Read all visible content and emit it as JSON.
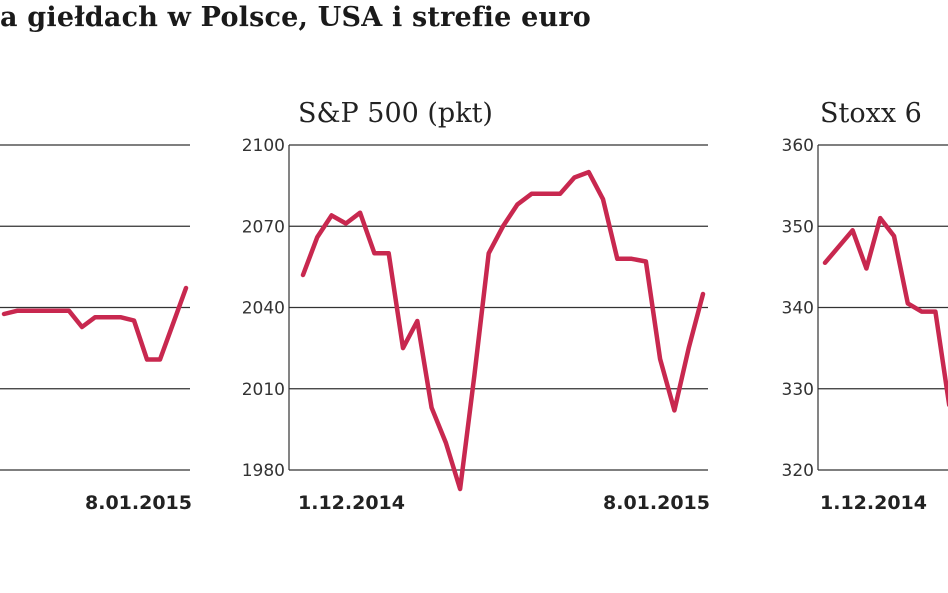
{
  "page": {
    "title": "a giełdach w Polsce, USA i strefie euro"
  },
  "colors": {
    "series": "#c8284f",
    "grid": "#333333"
  },
  "chart_data": [
    {
      "type": "line",
      "title": "",
      "yticks": [],
      "ylim": [
        0,
        100
      ],
      "x_start": "",
      "x_end": "8.01.2015",
      "series": [
        {
          "values": [
            48,
            49,
            49,
            49,
            49,
            49,
            44,
            47,
            47,
            47,
            46,
            34,
            34,
            45,
            56
          ]
        }
      ]
    },
    {
      "type": "line",
      "title": "S&P 500 (pkt)",
      "yticks": [
        "2100",
        "2070",
        "2040",
        "2010",
        "1980"
      ],
      "ylim": [
        1980,
        2100
      ],
      "x_start": "1.12.2014",
      "x_end": "8.01.2015",
      "series": [
        {
          "values": [
            2052,
            2066,
            2074,
            2071,
            2075,
            2060,
            2060,
            2025,
            2035,
            2003,
            1990,
            1973,
            2015,
            2060,
            2070,
            2078,
            2082,
            2082,
            2082,
            2088,
            2090,
            2080,
            2058,
            2058,
            2057,
            2021,
            2002,
            2025,
            2045
          ]
        }
      ]
    },
    {
      "type": "line",
      "title": "Stoxx 6",
      "yticks": [
        "360",
        "350",
        "340",
        "330",
        "320"
      ],
      "ylim": [
        320,
        360
      ],
      "x_start": "1.12.2014",
      "x_end": "",
      "series": [
        {
          "values": [
            345.5,
            347.5,
            349.5,
            344.8,
            351,
            348.8,
            340.5,
            339.5,
            339.5,
            328
          ]
        }
      ]
    }
  ]
}
